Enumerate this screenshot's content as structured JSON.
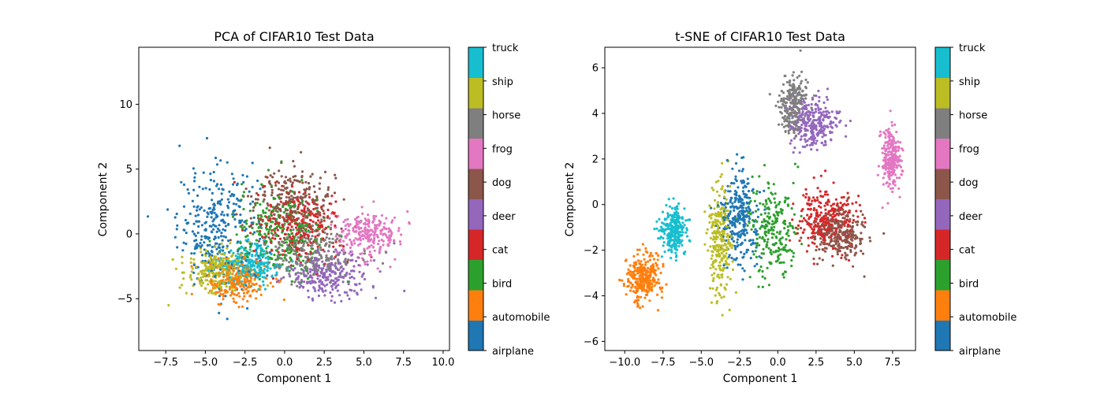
{
  "classes": [
    "airplane",
    "automobile",
    "bird",
    "cat",
    "deer",
    "dog",
    "frog",
    "horse",
    "ship",
    "truck"
  ],
  "colors": [
    "#1f77b4",
    "#ff7f0e",
    "#2ca02c",
    "#d62728",
    "#9467bd",
    "#8c564b",
    "#e377c2",
    "#7f7f7f",
    "#bcbd22",
    "#17becf"
  ],
  "chart_data": [
    {
      "type": "scatter",
      "title": "PCA of CIFAR10 Test Data",
      "xlabel": "Component 1",
      "ylabel": "Component 2",
      "xlim": [
        -9.2,
        10.4
      ],
      "ylim": [
        -9.0,
        14.4
      ],
      "xticks": [
        -7.5,
        -5.0,
        -2.5,
        0.0,
        2.5,
        5.0,
        7.5,
        10.0
      ],
      "xtick_labels": [
        "−7.5",
        "−5.0",
        "−2.5",
        "0.0",
        "2.5",
        "5.0",
        "7.5",
        "10.0"
      ],
      "yticks": [
        -5,
        0,
        5,
        10
      ],
      "ytick_labels": [
        "−5",
        "0",
        "5",
        "10"
      ],
      "colorbar_labels": [
        "airplane",
        "automobile",
        "bird",
        "cat",
        "deer",
        "dog",
        "frog",
        "horse",
        "ship",
        "truck"
      ],
      "series": [
        {
          "name": "airplane",
          "center": [
            -4.2,
            0.5
          ],
          "spread": [
            2.3,
            4.2
          ],
          "n": 320
        },
        {
          "name": "automobile",
          "center": [
            -3.0,
            -3.6
          ],
          "spread": [
            1.8,
            1.5
          ],
          "n": 240
        },
        {
          "name": "bird",
          "center": [
            -0.2,
            0.0
          ],
          "spread": [
            2.6,
            3.2
          ],
          "n": 260
        },
        {
          "name": "cat",
          "center": [
            1.0,
            0.5
          ],
          "spread": [
            2.4,
            2.4
          ],
          "n": 260
        },
        {
          "name": "deer",
          "center": [
            2.8,
            -3.2
          ],
          "spread": [
            2.4,
            1.6
          ],
          "n": 250
        },
        {
          "name": "dog",
          "center": [
            0.5,
            2.5
          ],
          "spread": [
            2.4,
            2.3
          ],
          "n": 250
        },
        {
          "name": "frog",
          "center": [
            5.3,
            0.0
          ],
          "spread": [
            1.8,
            1.6
          ],
          "n": 250
        },
        {
          "name": "horse",
          "center": [
            1.5,
            -1.5
          ],
          "spread": [
            2.6,
            2.0
          ],
          "n": 240
        },
        {
          "name": "ship",
          "center": [
            -4.2,
            -2.8
          ],
          "spread": [
            1.8,
            1.6
          ],
          "n": 250
        },
        {
          "name": "truck",
          "center": [
            -2.2,
            -2.4
          ],
          "spread": [
            1.8,
            1.5
          ],
          "n": 250
        }
      ]
    },
    {
      "type": "scatter",
      "title": "t-SNE of CIFAR10 Test Data",
      "xlabel": "Component 1",
      "ylabel": "Component 2",
      "xlim": [
        -11.3,
        9.0
      ],
      "ylim": [
        -6.4,
        6.9
      ],
      "xticks": [
        -10.0,
        -7.5,
        -5.0,
        -2.5,
        0.0,
        2.5,
        5.0,
        7.5
      ],
      "xtick_labels": [
        "−10.0",
        "−7.5",
        "−5.0",
        "−2.5",
        "0.0",
        "2.5",
        "5.0",
        "7.5"
      ],
      "yticks": [
        -6,
        -4,
        -2,
        0,
        2,
        4,
        6
      ],
      "ytick_labels": [
        "−6",
        "−4",
        "−2",
        "0",
        "2",
        "4",
        "6"
      ],
      "colorbar_labels": [
        "airplane",
        "automobile",
        "bird",
        "cat",
        "deer",
        "dog",
        "frog",
        "horse",
        "ship",
        "truck"
      ],
      "series": [
        {
          "name": "airplane",
          "center": [
            -2.5,
            -0.5
          ],
          "spread": [
            1.1,
            1.9
          ],
          "n": 280
        },
        {
          "name": "automobile",
          "center": [
            -8.8,
            -3.2
          ],
          "spread": [
            1.0,
            0.9
          ],
          "n": 300
        },
        {
          "name": "bird",
          "center": [
            -0.4,
            -1.0
          ],
          "spread": [
            1.4,
            1.9
          ],
          "n": 230
        },
        {
          "name": "cat",
          "center": [
            3.0,
            -0.6
          ],
          "spread": [
            1.8,
            1.3
          ],
          "n": 280
        },
        {
          "name": "deer",
          "center": [
            2.3,
            3.5
          ],
          "spread": [
            1.3,
            1.0
          ],
          "n": 260
        },
        {
          "name": "dog",
          "center": [
            4.0,
            -1.3
          ],
          "spread": [
            1.7,
            0.9
          ],
          "n": 260
        },
        {
          "name": "frog",
          "center": [
            7.4,
            2.0
          ],
          "spread": [
            0.6,
            1.3
          ],
          "n": 240
        },
        {
          "name": "horse",
          "center": [
            1.0,
            4.4
          ],
          "spread": [
            0.9,
            1.1
          ],
          "n": 240
        },
        {
          "name": "ship",
          "center": [
            -3.8,
            -1.5
          ],
          "spread": [
            0.7,
            2.3
          ],
          "n": 260
        },
        {
          "name": "truck",
          "center": [
            -6.8,
            -1.2
          ],
          "spread": [
            0.8,
            0.9
          ],
          "n": 260
        }
      ]
    }
  ]
}
